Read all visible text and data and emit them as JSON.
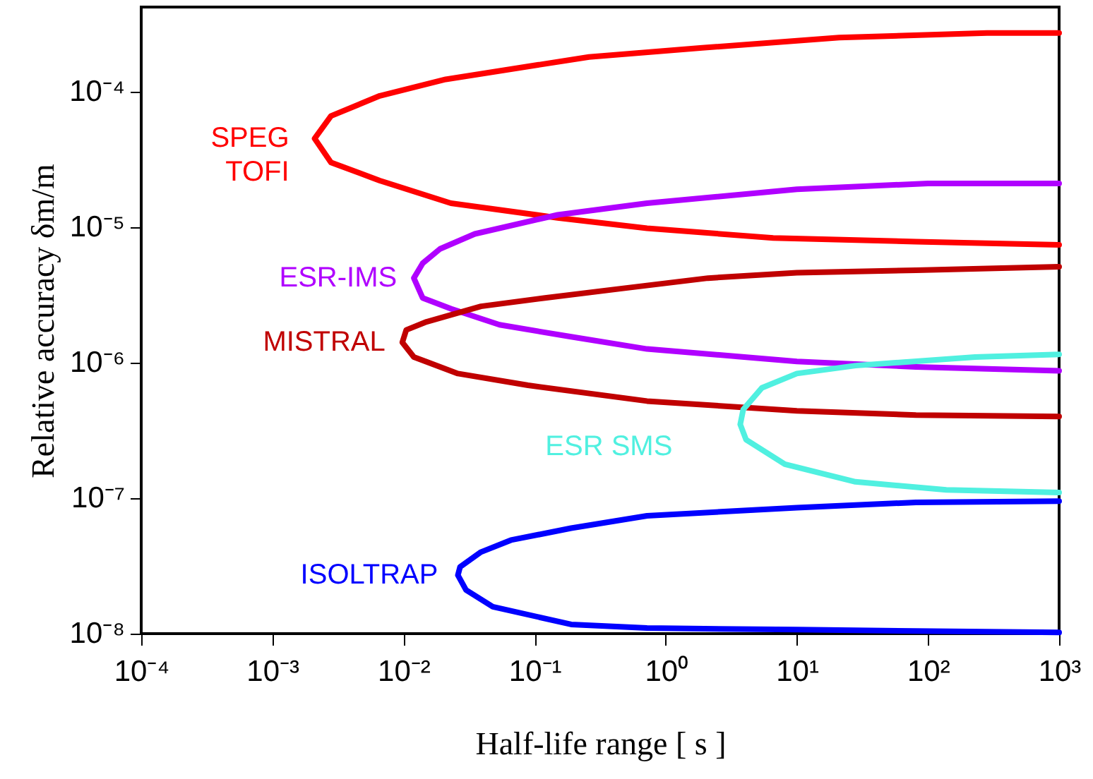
{
  "chart_data": {
    "type": "line",
    "xlabel": "Half-life range  [ s ]",
    "ylabel": "Relative  accuracy  δm/m",
    "log": "xy",
    "grid": false,
    "marker": "none",
    "line_style": "solid",
    "xlim": [
      0.0001,
      1000
    ],
    "ylim": [
      1e-08,
      0.00042
    ],
    "xticks": [
      {
        "value": 0.0001,
        "label": "10⁻⁴"
      },
      {
        "value": 0.001,
        "label": "10⁻³"
      },
      {
        "value": 0.01,
        "label": "10⁻²"
      },
      {
        "value": 0.1,
        "label": "10⁻¹"
      },
      {
        "value": 1,
        "label": "10⁰"
      },
      {
        "value": 10,
        "label": "10¹"
      },
      {
        "value": 100,
        "label": "10²"
      },
      {
        "value": 1000,
        "label": "10³"
      }
    ],
    "yticks": [
      {
        "value": 1e-08,
        "label": "10⁻⁸"
      },
      {
        "value": 1e-07,
        "label": "10⁻⁷"
      },
      {
        "value": 1e-06,
        "label": "10⁻⁶"
      },
      {
        "value": 1e-05,
        "label": "10⁻⁵"
      },
      {
        "value": 0.0001,
        "label": "10⁻⁴"
      }
    ],
    "series": [
      {
        "name": "SPEG\nTOFI",
        "color": "#ff0000",
        "x": [
          1000,
          282,
          21,
          1.9,
          0.26,
          0.021,
          0.0066,
          0.0028,
          0.0021,
          0.0028,
          0.0066,
          0.023,
          0.15,
          0.72,
          6.6,
          81,
          1000
        ],
        "values": [
          0.00027,
          0.00027,
          0.00025,
          0.00021,
          0.00018,
          0.000123,
          9.3e-05,
          6.6e-05,
          4.5e-05,
          3e-05,
          2.2e-05,
          1.5e-05,
          1.17e-05,
          9.8e-06,
          8.3e-06,
          7.8e-06,
          7.4e-06
        ]
      },
      {
        "name": "ESR-IMS",
        "color": "#b000ff",
        "x": [
          1000,
          100,
          10,
          0.72,
          0.15,
          0.035,
          0.019,
          0.014,
          0.012,
          0.014,
          0.023,
          0.054,
          0.19,
          0.72,
          10,
          81,
          1000
        ],
        "values": [
          2.1e-05,
          2.1e-05,
          1.9e-05,
          1.5e-05,
          1.23e-05,
          8.9e-06,
          6.9e-06,
          5.4e-06,
          4.2e-06,
          3e-06,
          2.5e-06,
          1.9e-06,
          1.55e-06,
          1.26e-06,
          1.02e-06,
          9.3e-07,
          8.7e-07
        ]
      },
      {
        "name": "MISTRAL",
        "color": "#c00000",
        "x": [
          1000,
          81,
          10,
          2.1,
          0.44,
          0.12,
          0.039,
          0.015,
          0.0105,
          0.0098,
          0.012,
          0.026,
          0.089,
          0.72,
          10,
          81,
          1000
        ],
        "values": [
          5.1e-06,
          4.8e-06,
          4.6e-06,
          4.2e-06,
          3.5e-06,
          3e-06,
          2.6e-06,
          2e-06,
          1.74e-06,
          1.41e-06,
          1.1e-06,
          8.3e-07,
          6.8e-07,
          5.2e-07,
          4.4e-07,
          4.1e-07,
          4e-07
        ]
      },
      {
        "name": "ESR SMS",
        "color": "#50f0e0",
        "x": [
          1000,
          229,
          28,
          10,
          5.4,
          3.9,
          3.7,
          4.1,
          8.1,
          28,
          138,
          1000
        ],
        "values": [
          1.15e-06,
          1.1e-06,
          9.5e-07,
          8.3e-07,
          6.5e-07,
          4.5e-07,
          3.5e-07,
          2.7e-07,
          1.78e-07,
          1.32e-07,
          1.15e-07,
          1.1e-07
        ]
      },
      {
        "name": "ISOLTRAP",
        "color": "#0000ff",
        "x": [
          1000,
          81,
          10,
          0.72,
          0.19,
          0.066,
          0.039,
          0.027,
          0.026,
          0.03,
          0.048,
          0.19,
          0.72,
          10,
          1000
        ],
        "values": [
          9.5e-08,
          9.3e-08,
          8.5e-08,
          7.4e-08,
          6e-08,
          4.9e-08,
          4e-08,
          3.1e-08,
          2.7e-08,
          2.1e-08,
          1.58e-08,
          1.17e-08,
          1.1e-08,
          1.07e-08,
          1.02e-08
        ]
      }
    ]
  }
}
